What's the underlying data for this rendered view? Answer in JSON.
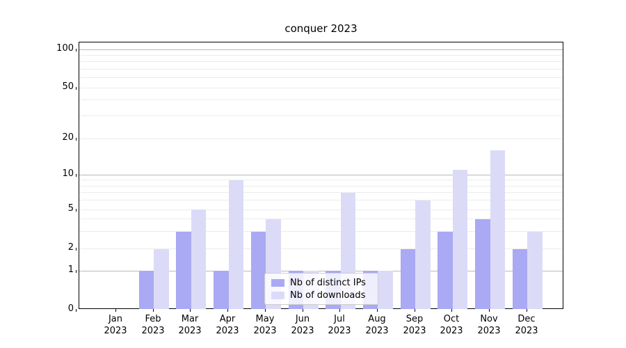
{
  "chart_data": {
    "type": "bar",
    "title": "conquer 2023",
    "months": [
      "Jan",
      "Feb",
      "Mar",
      "Apr",
      "May",
      "Jun",
      "Jul",
      "Aug",
      "Sep",
      "Oct",
      "Nov",
      "Dec"
    ],
    "year_label": "2023",
    "series": [
      {
        "name": "Nb of distinct IPs",
        "color": "#a9a9f4",
        "values": [
          0,
          1,
          3,
          1,
          3,
          1,
          1,
          1,
          2,
          3,
          4,
          2
        ]
      },
      {
        "name": "Nb of downloads",
        "color": "#dbdbf8",
        "values": [
          0,
          2,
          5,
          9,
          4,
          1,
          7,
          1,
          6,
          11,
          16,
          3
        ]
      }
    ],
    "yticks": [
      0,
      1,
      2,
      5,
      10,
      20,
      50,
      100
    ],
    "major_gridlines": [
      1,
      10,
      100
    ],
    "minor_gridlines": [
      2,
      3,
      4,
      5,
      6,
      7,
      8,
      9,
      20,
      30,
      40,
      50,
      60,
      70,
      80,
      90
    ],
    "scale": "symlog",
    "ylim": [
      0,
      120
    ],
    "grid": true,
    "legend_position": "lower center",
    "colors": {
      "ips_bar": "#a9a9f4",
      "downloads_bar": "#dbdbf8",
      "major_grid": "#b8b8b8",
      "minor_grid": "#ececec"
    }
  }
}
